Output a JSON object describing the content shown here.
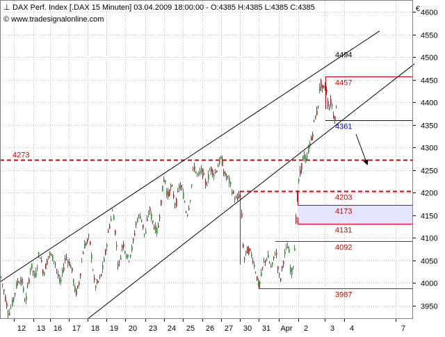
{
  "header": {
    "line1": "DAX Perf. Index [.DAX  15 Minuten] 03.04.2009 18:00:00 - O:4385 H:4385 L:4385 C:4385",
    "line2": "© www.tradesignalonline.com"
  },
  "currency_symbol": "€",
  "colors": {
    "up": "#1aa01a",
    "down": "#e01010",
    "red_line": "#dd0000",
    "blue_line": "#0000cc",
    "band": "#e4e4ff",
    "grid": "#c0c0c0"
  },
  "chart_data": {
    "type": "candlestick",
    "title": "DAX Perf. Index [.DAX  15 Minuten]",
    "ylim": [
      3920,
      4625
    ],
    "yticks": [
      3950,
      4000,
      4050,
      4100,
      4150,
      4200,
      4250,
      4300,
      4350,
      4400,
      4450,
      4500,
      4550,
      4600
    ],
    "xtick_labels": [
      "12",
      "13",
      "16",
      "17",
      "18",
      "19",
      "20",
      "23",
      "24",
      "25",
      "26",
      "27",
      "30",
      "31",
      "Apr",
      "2",
      "3",
      "4",
      "7"
    ],
    "grid": true,
    "price_anchors": [
      [
        0,
        4020
      ],
      [
        6,
        3975
      ],
      [
        12,
        3930
      ],
      [
        18,
        3960
      ],
      [
        24,
        4000
      ],
      [
        30,
        4010
      ],
      [
        36,
        3955
      ],
      [
        44,
        4040
      ],
      [
        50,
        4010
      ],
      [
        56,
        4070
      ],
      [
        62,
        4020
      ],
      [
        70,
        4065
      ],
      [
        78,
        4050
      ],
      [
        86,
        3995
      ],
      [
        94,
        4060
      ],
      [
        102,
        4035
      ],
      [
        108,
        3975
      ],
      [
        112,
        3990
      ],
      [
        120,
        4080
      ],
      [
        128,
        4100
      ],
      [
        136,
        3990
      ],
      [
        144,
        4010
      ],
      [
        150,
        4055
      ],
      [
        156,
        4120
      ],
      [
        162,
        4165
      ],
      [
        170,
        4030
      ],
      [
        176,
        4090
      ],
      [
        184,
        4050
      ],
      [
        190,
        4080
      ],
      [
        196,
        4140
      ],
      [
        202,
        4150
      ],
      [
        208,
        4100
      ],
      [
        214,
        4165
      ],
      [
        220,
        4130
      ],
      [
        226,
        4110
      ],
      [
        232,
        4195
      ],
      [
        236,
        4240
      ],
      [
        240,
        4190
      ],
      [
        246,
        4215
      ],
      [
        252,
        4170
      ],
      [
        258,
        4220
      ],
      [
        264,
        4190
      ],
      [
        268,
        4150
      ],
      [
        272,
        4175
      ],
      [
        278,
        4260
      ],
      [
        284,
        4235
      ],
      [
        290,
        4250
      ],
      [
        296,
        4215
      ],
      [
        302,
        4255
      ],
      [
        308,
        4240
      ],
      [
        314,
        4265
      ],
      [
        318,
        4275
      ],
      [
        322,
        4240
      ],
      [
        328,
        4230
      ],
      [
        334,
        4200
      ],
      [
        340,
        4180
      ],
      [
        344,
        4200
      ],
      [
        346,
        4180
      ],
      [
        350,
        4050
      ],
      [
        356,
        4075
      ],
      [
        362,
        4060
      ],
      [
        368,
        4020
      ],
      [
        372,
        3990
      ],
      [
        378,
        4040
      ],
      [
        384,
        4060
      ],
      [
        390,
        4030
      ],
      [
        396,
        4075
      ],
      [
        402,
        4000
      ],
      [
        408,
        4060
      ],
      [
        414,
        4085
      ],
      [
        418,
        4015
      ],
      [
        422,
        4050
      ],
      [
        425,
        4140
      ],
      [
        428,
        4215
      ],
      [
        432,
        4250
      ],
      [
        436,
        4285
      ],
      [
        440,
        4265
      ],
      [
        444,
        4305
      ],
      [
        448,
        4320
      ],
      [
        452,
        4365
      ],
      [
        456,
        4380
      ],
      [
        460,
        4445
      ],
      [
        464,
        4425
      ],
      [
        468,
        4440
      ],
      [
        472,
        4385
      ],
      [
        476,
        4405
      ],
      [
        480,
        4360
      ],
      [
        483,
        4385
      ]
    ],
    "trend_lines": [
      {
        "x1": 0,
        "y1": 4002,
        "x2": 546,
        "y2": 4558,
        "color": "#000000"
      },
      {
        "x1": 126,
        "y1": 3920,
        "x2": 596,
        "y2": 4485,
        "color": "#000000"
      }
    ],
    "levels": [
      {
        "label": "4494",
        "value": 4494,
        "color": "#000000",
        "style": "label"
      },
      {
        "label": "4457",
        "value": 4457,
        "color": "#dd0000",
        "style": "solid"
      },
      {
        "label": "4361",
        "value": 4361,
        "color": "#0000cc",
        "style": "solid"
      },
      {
        "label": "4273",
        "value": 4273,
        "color": "#dd0000",
        "style": "dashed"
      },
      {
        "label": "4203",
        "value": 4203,
        "color": "#dd0000",
        "style": "dashed"
      },
      {
        "label": "4173",
        "value": 4173,
        "color": "#dd0000",
        "style": "solid"
      },
      {
        "label": "4131",
        "value": 4131,
        "color": "#dd0000",
        "style": "solid"
      },
      {
        "label": "4092",
        "value": 4092,
        "color": "#dd0000",
        "style": "solid"
      },
      {
        "label": "3987",
        "value": 3987,
        "color": "#dd0000",
        "style": "solid"
      }
    ],
    "zone": {
      "from": 4131,
      "to": 4173
    }
  }
}
